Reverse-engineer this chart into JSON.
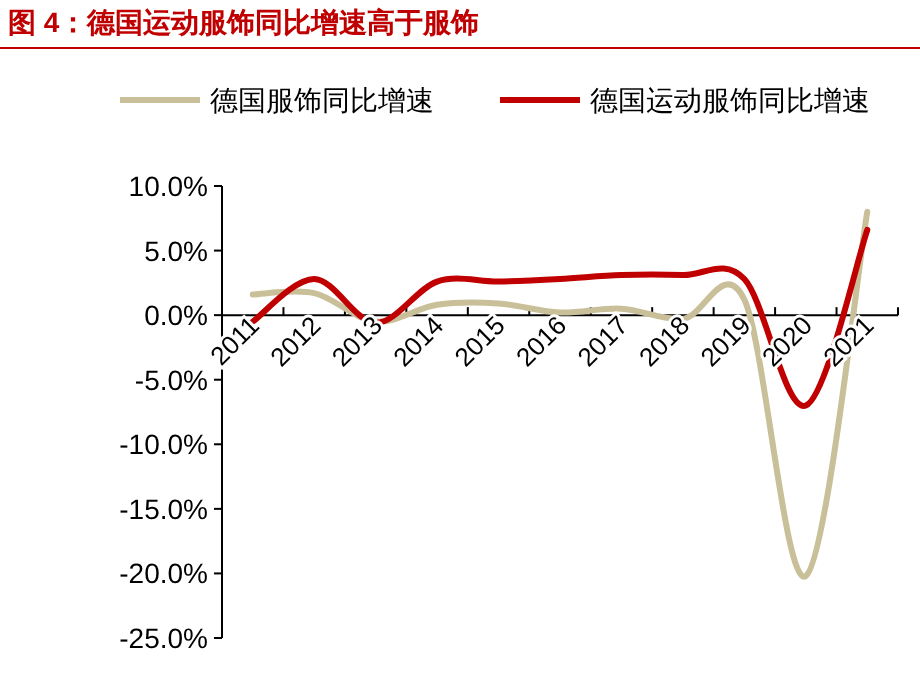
{
  "chart_data": {
    "type": "line",
    "title": "图 4：德国运动服饰同比增速高于服饰",
    "categories": [
      "2011",
      "2012",
      "2013",
      "2014",
      "2015",
      "2016",
      "2017",
      "2018",
      "2019",
      "2020",
      "2021"
    ],
    "series": [
      {
        "name": "德国服饰同比增速",
        "color": "#c9c09a",
        "values": [
          1.6,
          1.7,
          -0.5,
          0.8,
          0.9,
          0.2,
          0.5,
          -0.3,
          1.2,
          -20.2,
          8.0
        ]
      },
      {
        "name": "德国运动服饰同比增速",
        "color": "#c00000",
        "values": [
          -0.5,
          2.8,
          -0.6,
          2.6,
          2.6,
          2.8,
          3.1,
          3.1,
          2.8,
          -7.0,
          6.6
        ]
      }
    ],
    "ylim": [
      -25,
      10
    ],
    "yticks": [
      {
        "value": -25,
        "label": "-25.0%"
      },
      {
        "value": -20,
        "label": "-20.0%"
      },
      {
        "value": -15,
        "label": "-15.0%"
      },
      {
        "value": -10,
        "label": "-10.0%"
      },
      {
        "value": -5,
        "label": "-5.0%"
      },
      {
        "value": 0,
        "label": "0.0%"
      },
      {
        "value": 5,
        "label": "5.0%"
      },
      {
        "value": 10,
        "label": "10.0%"
      }
    ],
    "grid": false,
    "legend": "top",
    "marker": "none",
    "line_style": "solid"
  }
}
